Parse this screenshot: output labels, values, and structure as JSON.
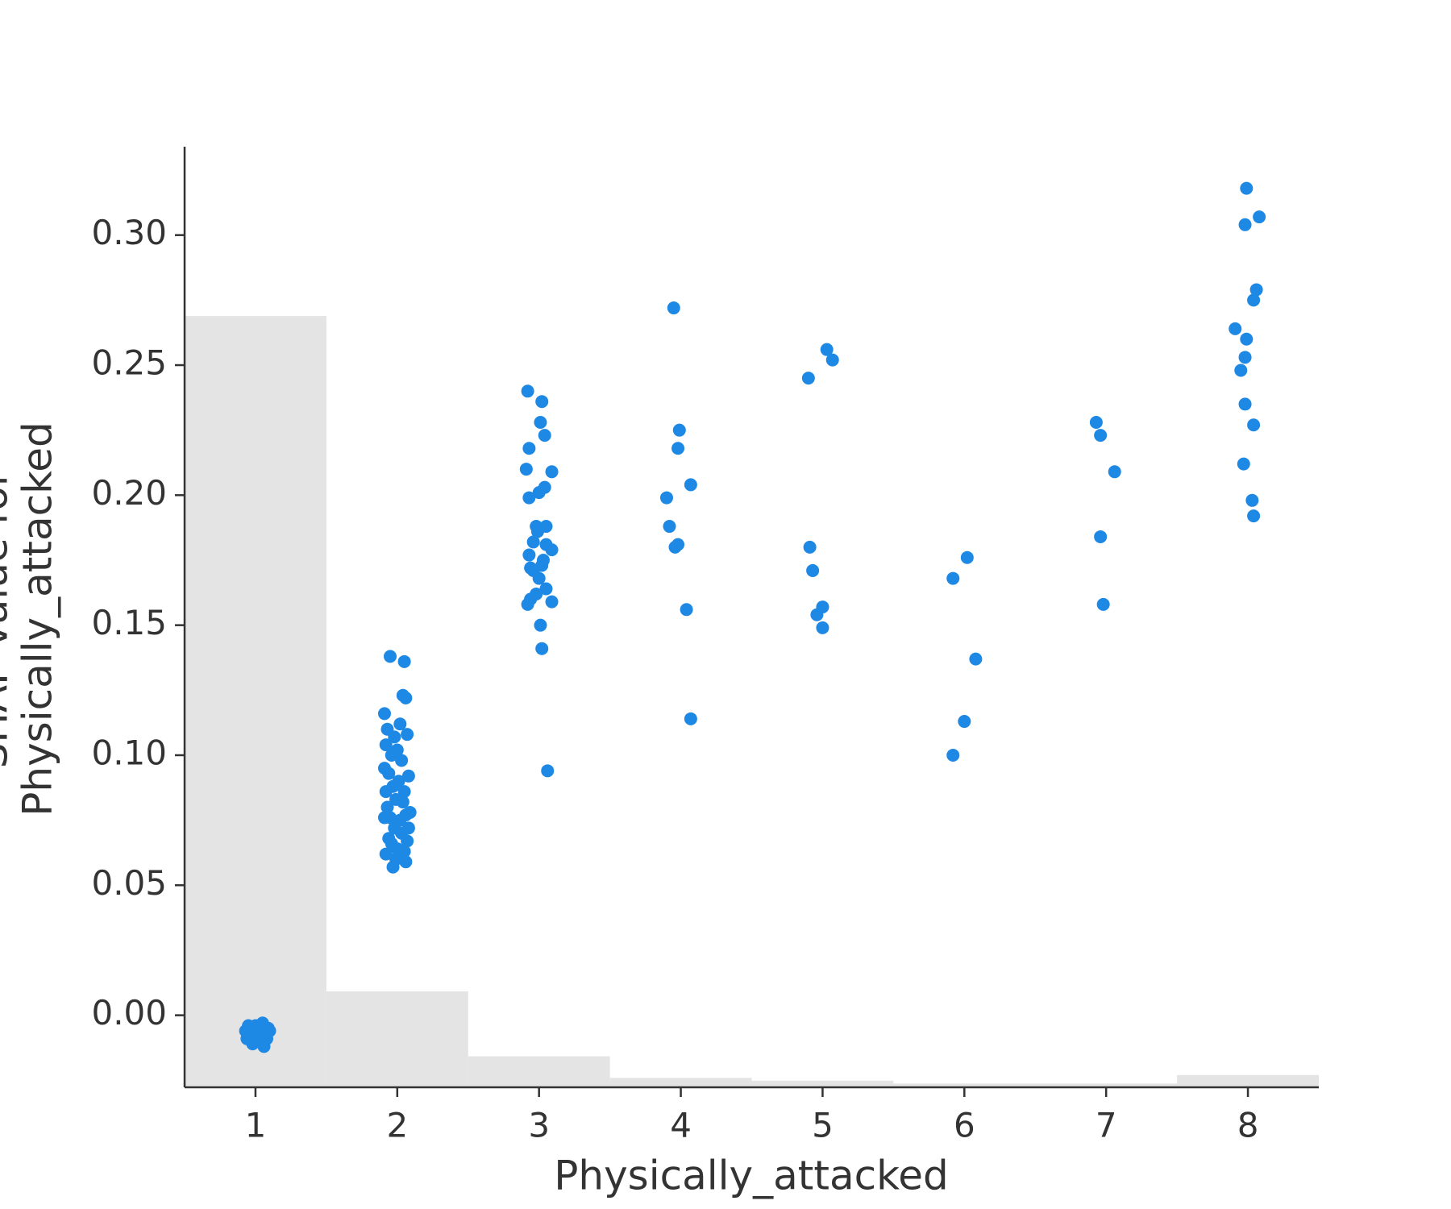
{
  "chart_data": {
    "type": "scatter",
    "xlabel": "Physically_attacked",
    "ylabel": [
      "SHAP value for",
      "Physically_attacked"
    ],
    "xlim": [
      0.5,
      8.5
    ],
    "xticks": [
      1,
      2,
      3,
      4,
      5,
      6,
      7,
      8
    ],
    "ylim": [
      -0.0277,
      0.334
    ],
    "yticks": [
      {
        "value": 0,
        "label": "0.00"
      },
      0.05,
      {
        "value": 0.1,
        "label": "0.10"
      },
      0.15,
      {
        "value": 0.2,
        "label": "0.20"
      },
      0.25,
      {
        "value": 0.3,
        "label": "0.30"
      }
    ],
    "color": "#1e88e5",
    "x": [
      0.93,
      0.95,
      0.97,
      0.99,
      1.01,
      1.03,
      1.05,
      1.07,
      1.09,
      0.94,
      0.96,
      0.98,
      1.0,
      1.02,
      1.04,
      1.06,
      1.08,
      1.1,
      0.98,
      1.06,
      1.95,
      2.05,
      2.04,
      2.06,
      1.91,
      1.93,
      2.02,
      1.98,
      2.07,
      1.92,
      2.0,
      1.96,
      2.03,
      1.91,
      2.08,
      1.94,
      2.01,
      1.97,
      2.05,
      1.92,
      2.09,
      1.99,
      2.04,
      1.93,
      2.06,
      1.95,
      2.02,
      1.91,
      2.08,
      1.98,
      2.03,
      1.94,
      2.07,
      1.96,
      2.0,
      1.92,
      2.05,
      1.99,
      1.97,
      2.06,
      2.92,
      3.02,
      2.93,
      3.01,
      3.04,
      2.91,
      3.09,
      3.04,
      3.0,
      2.93,
      2.98,
      3.05,
      2.99,
      2.96,
      3.05,
      3.09,
      2.93,
      3.03,
      3.02,
      2.94,
      2.96,
      3.0,
      3.05,
      2.98,
      2.94,
      2.92,
      3.09,
      3.01,
      3.02,
      3.06,
      3.95,
      3.99,
      3.98,
      4.07,
      3.9,
      3.92,
      3.98,
      3.96,
      4.04,
      4.07,
      5.03,
      5.07,
      4.9,
      4.91,
      4.93,
      5.0,
      4.96,
      5.0,
      6.02,
      5.92,
      6.08,
      6.0,
      5.92,
      6.93,
      6.96,
      7.06,
      6.96,
      6.98,
      7.99,
      8.08,
      7.98,
      8.06,
      8.04,
      7.91,
      7.99,
      7.98,
      7.95,
      7.98,
      8.04,
      7.97,
      8.03,
      8.04
    ],
    "values": [
      -0.006,
      -0.004,
      -0.008,
      -0.005,
      -0.009,
      -0.006,
      -0.003,
      -0.007,
      -0.005,
      -0.009,
      -0.006,
      -0.01,
      -0.004,
      -0.007,
      -0.008,
      -0.005,
      -0.009,
      -0.006,
      -0.011,
      -0.012,
      0.138,
      0.136,
      0.123,
      0.122,
      0.116,
      0.11,
      0.112,
      0.107,
      0.108,
      0.104,
      0.102,
      0.1,
      0.098,
      0.095,
      0.092,
      0.093,
      0.09,
      0.088,
      0.086,
      0.086,
      0.078,
      0.083,
      0.082,
      0.08,
      0.077,
      0.076,
      0.075,
      0.076,
      0.072,
      0.072,
      0.07,
      0.068,
      0.067,
      0.066,
      0.064,
      0.062,
      0.063,
      0.06,
      0.057,
      0.059,
      0.24,
      0.236,
      0.218,
      0.228,
      0.223,
      0.21,
      0.209,
      0.203,
      0.201,
      0.199,
      0.188,
      0.188,
      0.186,
      0.182,
      0.181,
      0.179,
      0.177,
      0.175,
      0.173,
      0.172,
      0.171,
      0.168,
      0.164,
      0.162,
      0.16,
      0.158,
      0.159,
      0.15,
      0.141,
      0.094,
      0.272,
      0.225,
      0.218,
      0.204,
      0.199,
      0.188,
      0.181,
      0.18,
      0.156,
      0.114,
      0.256,
      0.252,
      0.245,
      0.18,
      0.171,
      0.157,
      0.154,
      0.149,
      0.176,
      0.168,
      0.137,
      0.113,
      0.1,
      0.228,
      0.223,
      0.209,
      0.184,
      0.158,
      0.318,
      0.307,
      0.304,
      0.279,
      0.275,
      0.264,
      0.26,
      0.253,
      0.248,
      0.235,
      0.227,
      0.212,
      0.198,
      0.192
    ],
    "histogram": {
      "bins": [
        0.5,
        1.5,
        2.5,
        3.5,
        4.5,
        5.5,
        6.5,
        7.5,
        8.5
      ],
      "counts": [
        820,
        102,
        33,
        10,
        7,
        4,
        4,
        13
      ],
      "color": "#e4e4e4",
      "y2lim": [
        0,
        1000
      ]
    }
  }
}
